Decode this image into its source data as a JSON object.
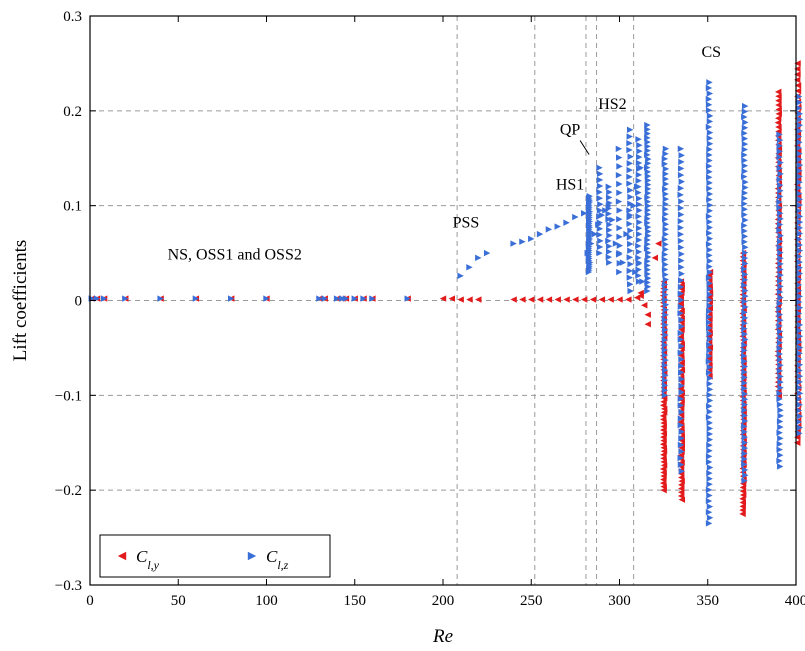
{
  "chart_data": {
    "type": "scatter",
    "xlabel": "Re",
    "ylabel": "Lift coefficients",
    "xlim": [
      0,
      400
    ],
    "ylim": [
      -0.3,
      0.3
    ],
    "x_ticks": [
      "0",
      "50",
      "100",
      "150",
      "200",
      "250",
      "300",
      "350",
      "400"
    ],
    "y_ticks": [
      "−0.3",
      "−0.2",
      "−0.1",
      "0",
      "0.1",
      "0.2",
      "0.3"
    ],
    "grid": "dashed",
    "vlines": [
      208,
      252,
      281,
      287,
      308
    ],
    "annotations": [
      {
        "text": "NS, OSS1 and OSS2",
        "x": 82,
        "y": 0.043
      },
      {
        "text": "PSS",
        "x": 213,
        "y": 0.077
      },
      {
        "text": "HS1",
        "x": 272,
        "y": 0.117
      },
      {
        "text": "QP",
        "x": 272,
        "y": 0.175
      },
      {
        "text": "HS2",
        "x": 296,
        "y": 0.202
      },
      {
        "text": "CS",
        "x": 352,
        "y": 0.257
      }
    ],
    "legend": {
      "position": "bottom-left",
      "labels": [
        "C_{l,y}",
        "C_{l,z}"
      ]
    },
    "series": [
      {
        "name": "C_{l,y}",
        "color": "#e31a1c",
        "marker": "left-triangle",
        "points": [
          [
            1,
            0.002
          ],
          [
            4,
            0.002
          ],
          [
            8,
            0.002
          ],
          [
            20,
            0.002
          ],
          [
            40,
            0.002
          ],
          [
            60,
            0.002
          ],
          [
            80,
            0.002
          ],
          [
            100,
            0.002
          ],
          [
            130,
            0.002
          ],
          [
            133,
            0.002
          ],
          [
            140,
            0.002
          ],
          [
            143,
            0.002
          ],
          [
            145,
            0.002
          ],
          [
            150,
            0.002
          ],
          [
            155,
            0.002
          ],
          [
            160,
            0.002
          ],
          [
            180,
            0.002
          ],
          [
            200,
            0.002
          ],
          [
            205,
            0.002
          ],
          [
            210,
            0.001
          ],
          [
            215,
            0.001
          ],
          [
            220,
            0.001
          ],
          [
            240,
            0.001
          ],
          [
            245,
            0.001
          ],
          [
            250,
            0.001
          ],
          [
            255,
            0.001
          ],
          [
            260,
            0.001
          ],
          [
            265,
            0.001
          ],
          [
            270,
            0.001
          ],
          [
            275,
            0.001
          ],
          [
            280,
            0.001
          ],
          [
            285,
            0.001
          ],
          [
            290,
            0.001
          ],
          [
            295,
            0.001
          ],
          [
            300,
            0.001
          ],
          [
            305,
            0.001
          ],
          [
            310,
            0.003
          ],
          [
            312,
            0.005
          ],
          [
            314,
            -0.005
          ],
          [
            316,
            -0.015
          ],
          [
            316,
            -0.025
          ],
          [
            312,
            0.008
          ],
          [
            320,
            0.045
          ],
          [
            322,
            0.06
          ],
          {
            "range": [
              325,
              -0.2,
              0.02,
              60
            ]
          },
          {
            "range": [
              335,
              -0.21,
              0.02,
              60
            ]
          },
          {
            "range": [
              351,
              -0.08,
              0.03,
              30
            ]
          },
          {
            "range": [
              370,
              -0.225,
              0.05,
              70
            ]
          },
          {
            "range": [
              390,
              -0.1,
              0.22,
              70
            ]
          },
          {
            "range": [
              401,
              -0.15,
              0.25,
              70
            ]
          }
        ]
      },
      {
        "name": "C_{l,z}",
        "color": "#3b6fd8",
        "marker": "right-triangle",
        "points": [
          [
            1,
            0.002
          ],
          [
            4,
            0.002
          ],
          [
            8,
            0.002
          ],
          [
            20,
            0.002
          ],
          [
            40,
            0.002
          ],
          [
            60,
            0.002
          ],
          [
            80,
            0.002
          ],
          [
            100,
            0.002
          ],
          [
            130,
            0.002
          ],
          [
            133,
            0.002
          ],
          [
            140,
            0.002
          ],
          [
            143,
            0.002
          ],
          [
            145,
            0.002
          ],
          [
            150,
            0.002
          ],
          [
            155,
            0.002
          ],
          [
            160,
            0.002
          ],
          [
            180,
            0.002
          ],
          [
            210,
            0.026
          ],
          [
            215,
            0.035
          ],
          [
            220,
            0.045
          ],
          [
            225,
            0.05
          ],
          [
            240,
            0.06
          ],
          [
            245,
            0.062
          ],
          [
            250,
            0.065
          ],
          [
            255,
            0.07
          ],
          [
            260,
            0.075
          ],
          [
            265,
            0.078
          ],
          [
            270,
            0.082
          ],
          [
            275,
            0.088
          ],
          [
            280,
            0.092
          ],
          [
            282,
            0.05
          ],
          [
            284,
            0.06
          ],
          [
            286,
            0.07
          ],
          [
            288,
            0.08
          ],
          [
            290,
            0.09
          ],
          [
            292,
            0.095
          ],
          [
            294,
            0.1
          ],
          [
            296,
            0.085
          ],
          [
            298,
            0.06
          ],
          [
            300,
            0.05
          ],
          [
            302,
            0.04
          ],
          [
            304,
            0.07
          ],
          [
            306,
            0.09
          ],
          [
            308,
            0.1
          ],
          [
            310,
            0.12
          ],
          [
            312,
            0.14
          ],
          [
            309,
            0.03
          ],
          [
            311,
            0.04
          ],
          [
            313,
            0.02
          ],
          {
            "range": [
              283,
              0.03,
              0.11,
              40
            ]
          },
          {
            "range": [
              289,
              0.05,
              0.14,
              15
            ]
          },
          {
            "range": [
              294,
              0.04,
              0.12,
              15
            ]
          },
          {
            "range": [
              300,
              0.03,
              0.16,
              15
            ]
          },
          {
            "range": [
              306,
              0.01,
              0.18,
              25
            ]
          },
          {
            "range": [
              311,
              0.02,
              0.17,
              25
            ]
          },
          {
            "range": [
              316,
              0.01,
              0.185,
              40
            ]
          },
          {
            "range": [
              326,
              -0.1,
              0.16,
              50
            ]
          },
          {
            "range": [
              335,
              -0.18,
              0.16,
              50
            ]
          },
          {
            "range": [
              351,
              -0.235,
              0.23,
              80
            ]
          },
          {
            "range": [
              371,
              -0.19,
              0.205,
              70
            ]
          },
          {
            "range": [
              391,
              -0.175,
              0.175,
              60
            ]
          },
          {
            "range": [
              402,
              -0.14,
              0.215,
              60
            ]
          }
        ]
      }
    ]
  }
}
